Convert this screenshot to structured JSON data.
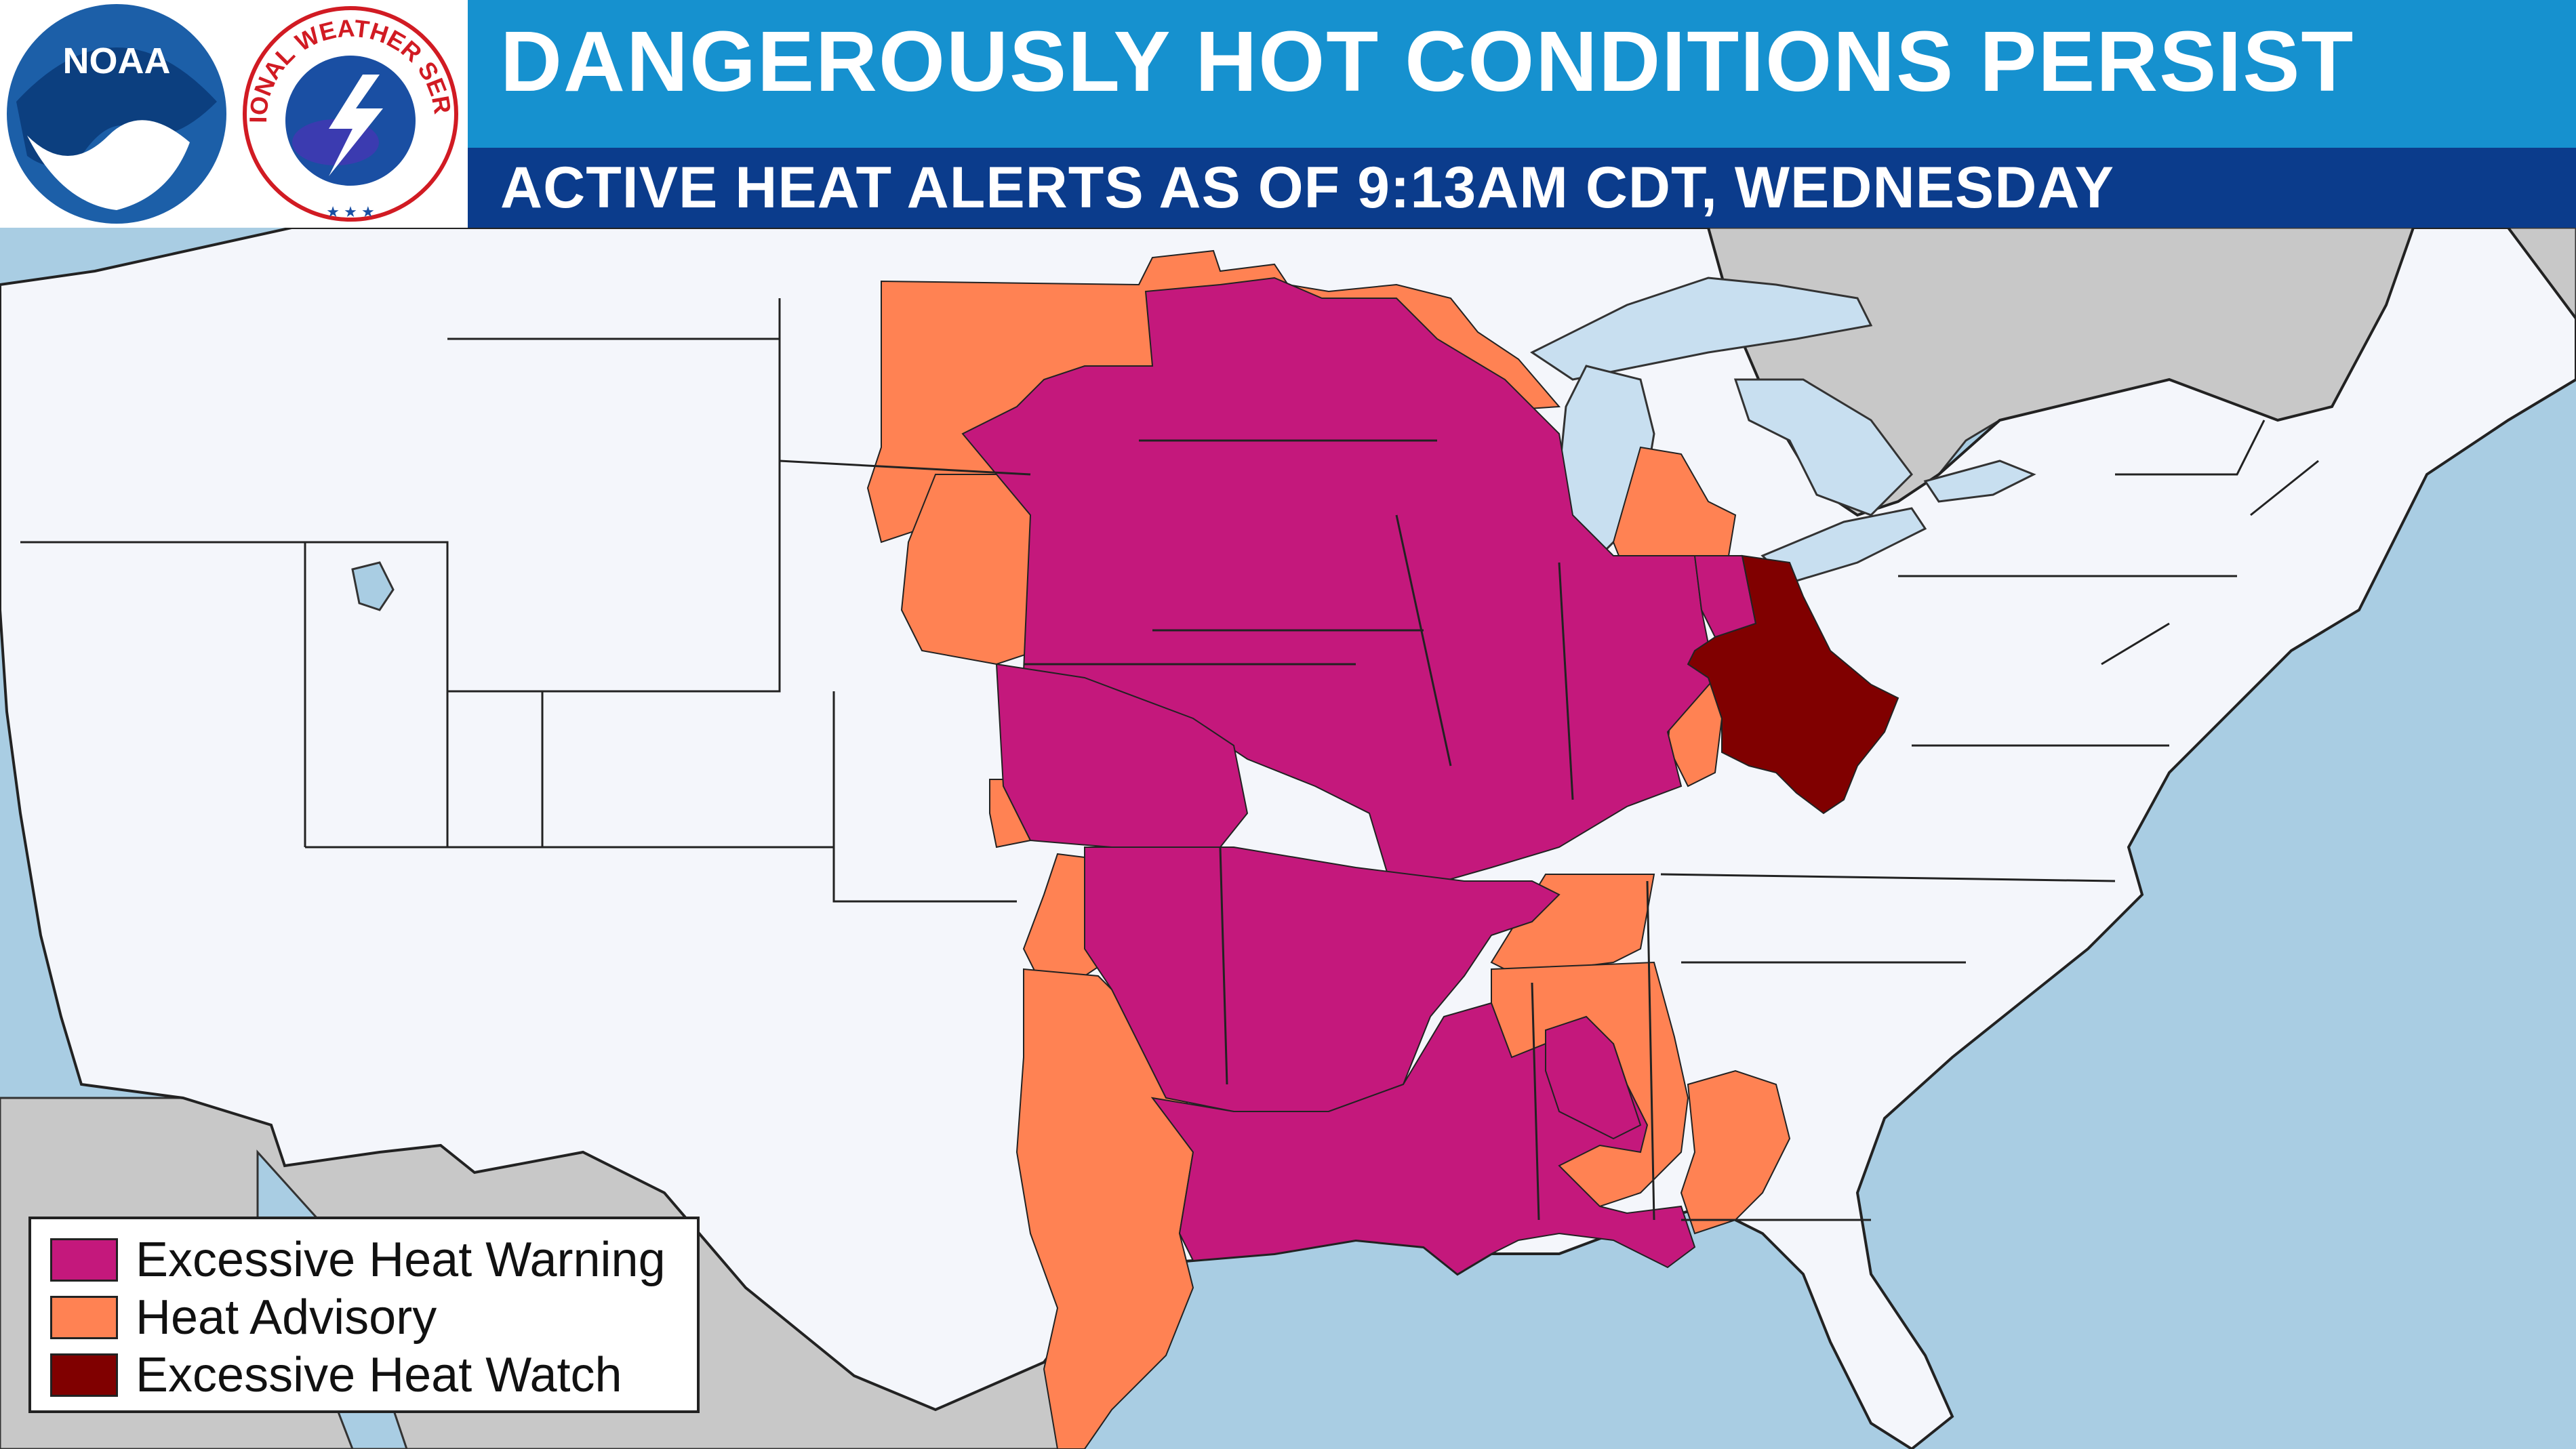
{
  "header": {
    "title": "DANGEROUSLY HOT CONDITIONS PERSIST",
    "subtitle": "ACTIVE HEAT ALERTS AS OF 9:13AM CDT, WEDNESDAY"
  },
  "logos": {
    "noaa": "NOAA",
    "nws": "NATIONAL WEATHER SERVICE"
  },
  "legend": [
    {
      "label": "Excessive Heat Warning",
      "color": "#c4187c"
    },
    {
      "label": "Heat Advisory",
      "color": "#ff8253"
    },
    {
      "label": "Excessive Heat Watch",
      "color": "#800000"
    }
  ],
  "colors": {
    "ocean": "#a9cde3",
    "land": "#f4f6fb",
    "foreign_land": "#c8c8c8",
    "title_bar": "#1691cf",
    "subtitle_bar": "#0b3c8c"
  }
}
